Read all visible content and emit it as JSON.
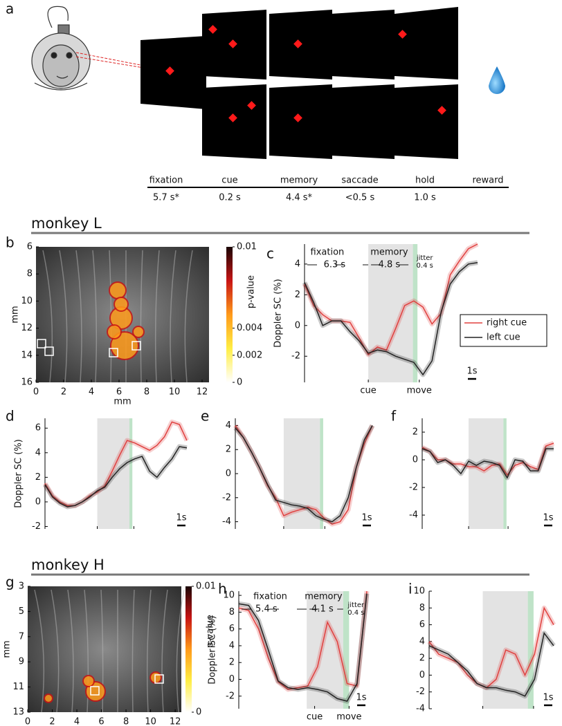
{
  "figure": {
    "panel_a": {
      "label": "a",
      "stages": [
        "fixation",
        "cue",
        "memory",
        "saccade",
        "hold",
        "reward"
      ],
      "durations": [
        "5.7 s*",
        "0.2 s",
        "4.4 s*",
        "<0.5 s",
        "1.0 s"
      ]
    },
    "sections": [
      "monkey L",
      "monkey H"
    ],
    "maps": [
      {
        "label": "b",
        "xlabel": "mm",
        "ylabel": "mm",
        "xlim": [
          0,
          12.5
        ],
        "ylim": [
          6,
          16
        ],
        "xticks": [
          0,
          2,
          4,
          6,
          8,
          10,
          12
        ],
        "yticks": [
          6,
          8,
          10,
          12,
          14,
          16
        ],
        "colorbar": {
          "label": "p-value",
          "lim": [
            0,
            0.01
          ],
          "ticks": [
            0.01,
            0.004,
            0.002,
            0
          ]
        }
      },
      {
        "label": "g",
        "xlabel": "mm",
        "ylabel": "mm",
        "xlim": [
          0,
          12.5
        ],
        "ylim": [
          3,
          13
        ],
        "xticks": [
          0,
          2,
          4,
          6,
          8,
          10,
          12
        ],
        "yticks": [
          3,
          5,
          7,
          9,
          11,
          13
        ],
        "colorbar": {
          "label": "p-value",
          "lim": [
            0,
            0.01
          ],
          "ticks": [
            0.01,
            0
          ]
        }
      }
    ]
  },
  "chart_data": [
    {
      "type": "line",
      "label": "c",
      "ylabel": "Doppler SC (%)",
      "ylim": [
        -3.7,
        5.3
      ],
      "yticks": [
        -2,
        0,
        2,
        4
      ],
      "events": [
        "cue",
        "move"
      ],
      "annotations": [
        "fixation",
        "memory",
        "6.3 s",
        "4.8 s",
        "jitter",
        "0.4 s"
      ],
      "scalebar": "1s",
      "series": [
        {
          "name": "right cue",
          "color": "#e0403f",
          "values": [
            2.7,
            1.3,
            0.7,
            0.3,
            0.3,
            0.2,
            -0.8,
            -1.9,
            -1.4,
            -1.6,
            -0.2,
            1.3,
            1.6,
            1.2,
            0.1,
            0.8,
            3.3,
            4.2,
            5.0,
            5.3
          ]
        },
        {
          "name": "left cue",
          "color": "#222222",
          "values": [
            2.8,
            1.5,
            0.0,
            0.3,
            0.3,
            -0.4,
            -1.0,
            -1.8,
            -1.6,
            -1.7,
            -2.0,
            -2.2,
            -2.4,
            -3.2,
            -2.3,
            0.9,
            2.7,
            3.5,
            4.0,
            4.1
          ]
        }
      ]
    },
    {
      "type": "line",
      "label": "d",
      "ylabel": "Doppler SC (%)",
      "ylim": [
        -2.2,
        6.8
      ],
      "yticks": [
        -2,
        0,
        2,
        4,
        6
      ],
      "scalebar": "1s",
      "series": [
        {
          "color": "#e0403f",
          "values": [
            1.5,
            0.5,
            0,
            -0.3,
            -0.3,
            0,
            0.5,
            0.8,
            1.3,
            2.5,
            3.8,
            5.0,
            4.8,
            4.5,
            4.2,
            4.6,
            5.3,
            6.5,
            6.3,
            5.0
          ]
        },
        {
          "color": "#222222",
          "values": [
            1.4,
            0.4,
            -0.1,
            -0.4,
            -0.3,
            0,
            0.4,
            0.9,
            1.2,
            2.0,
            2.7,
            3.2,
            3.5,
            3.7,
            2.5,
            2.0,
            2.8,
            3.5,
            4.5,
            4.4
          ]
        }
      ]
    },
    {
      "type": "line",
      "label": "e",
      "ylim": [
        -4.6,
        4.6
      ],
      "yticks": [
        -4,
        -2,
        0,
        2,
        4
      ],
      "scalebar": "1s",
      "series": [
        {
          "color": "#e0403f",
          "values": [
            4,
            3,
            1.8,
            0.5,
            -1,
            -2,
            -3.5,
            -3.2,
            -3,
            -2.8,
            -3,
            -3.7,
            -4.2,
            -4,
            -3,
            0.5,
            2.5,
            4
          ]
        },
        {
          "color": "#222222",
          "values": [
            3.8,
            3,
            1.8,
            0.5,
            -0.9,
            -2.2,
            -2.4,
            -2.6,
            -2.7,
            -2.9,
            -3.5,
            -3.8,
            -4,
            -3.5,
            -2,
            0.5,
            2.8,
            4
          ]
        }
      ]
    },
    {
      "type": "line",
      "label": "f",
      "ylim": [
        -5,
        3
      ],
      "yticks": [
        -4,
        -2,
        0,
        2
      ],
      "scalebar": "1s",
      "series": [
        {
          "color": "#e0403f",
          "values": [
            0.9,
            0.6,
            0,
            0,
            -0.3,
            -0.3,
            -0.5,
            -0.5,
            -0.8,
            -0.4,
            -0.3,
            -1.1,
            -0.4,
            -0.2,
            -0.5,
            -0.7,
            1.0,
            1.2
          ]
        },
        {
          "color": "#222222",
          "values": [
            0.8,
            0.6,
            -0.2,
            0,
            -0.4,
            -1.0,
            -0.1,
            -0.4,
            -0.1,
            -0.2,
            -0.4,
            -1.3,
            0,
            -0.1,
            -0.8,
            -0.8,
            0.8,
            0.8
          ]
        }
      ]
    },
    {
      "type": "line",
      "label": "h",
      "ylabel": "Doppler SC (%)",
      "ylim": [
        -3.5,
        10.5
      ],
      "yticks": [
        -2,
        0,
        2,
        4,
        6,
        8,
        10
      ],
      "events": [
        "cue",
        "move"
      ],
      "annotations": [
        "fixation",
        "memory",
        "5.4 s",
        "4.1 s",
        "jitter",
        "0.4 s"
      ],
      "scalebar": "1s",
      "series": [
        {
          "color": "#e0403f",
          "values": [
            8.5,
            8.2,
            6.0,
            2.5,
            -0.3,
            -1.2,
            -1.0,
            -0.8,
            1.5,
            6.8,
            4.5,
            -0.5,
            -0.8,
            10.5
          ]
        },
        {
          "color": "#222222",
          "values": [
            9.0,
            8.8,
            7.0,
            3.5,
            -0.2,
            -1.0,
            -1.2,
            -1.0,
            -1.2,
            -1.5,
            -2.3,
            -2.6,
            -0.5,
            10.2
          ]
        }
      ]
    },
    {
      "type": "line",
      "label": "i",
      "ylim": [
        -4,
        10
      ],
      "yticks": [
        -4,
        -2,
        0,
        2,
        4,
        6,
        8,
        10
      ],
      "scalebar": "1s",
      "series": [
        {
          "color": "#e0403f",
          "values": [
            4,
            2.5,
            2,
            1.5,
            0,
            -1,
            -1.5,
            -0.5,
            3,
            2.5,
            0,
            2.5,
            8,
            6
          ]
        },
        {
          "color": "#222222",
          "values": [
            3.5,
            3,
            2.5,
            1.5,
            0.5,
            -1,
            -1.5,
            -1.5,
            -1.8,
            -2,
            -2.5,
            -0.5,
            5,
            3.5
          ]
        }
      ]
    }
  ]
}
